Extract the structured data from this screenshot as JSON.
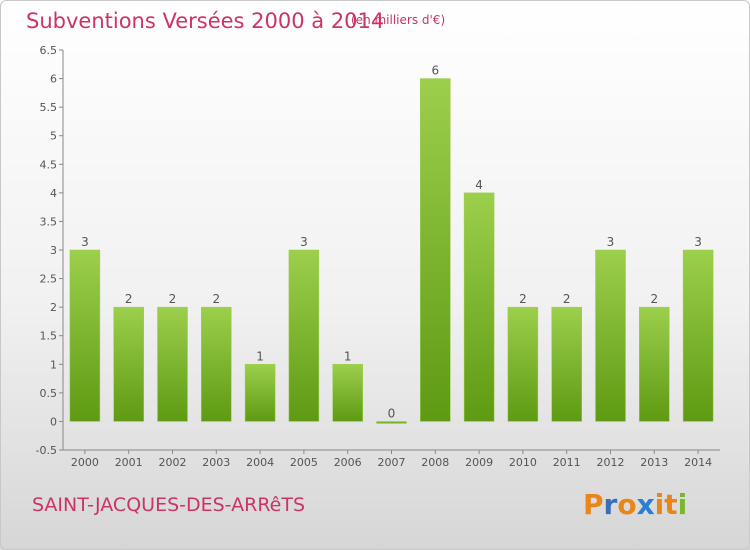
{
  "header": {
    "title": "Subventions Versées 2000 à 2014",
    "subtitle": "(en milliers d'€)"
  },
  "footer": {
    "commune": "SAINT-JACQUES-DES-ARRêTS",
    "logo": "Proxiti"
  },
  "colors": {
    "title": "#cc3366",
    "bar_top": "#9ccf4c",
    "bar_bottom": "#5e9a12",
    "axis": "#888888",
    "label": "#555555",
    "logo_letters": [
      "#e8861a",
      "#3a6fb5",
      "#e8861a",
      "#2a7fd0",
      "#e8861a",
      "#e8861a",
      "#7ab62e"
    ]
  },
  "chart_data": {
    "type": "bar",
    "categories": [
      "2000",
      "2001",
      "2002",
      "2003",
      "2004",
      "2005",
      "2006",
      "2007",
      "2008",
      "2009",
      "2010",
      "2011",
      "2012",
      "2013",
      "2014"
    ],
    "values": [
      3,
      2,
      2,
      2,
      1,
      3,
      1,
      0,
      6,
      4,
      2,
      2,
      3,
      2,
      3
    ],
    "ylim": [
      -0.5,
      6.5
    ],
    "yticks": [
      -0.5,
      0,
      0.5,
      1,
      1.5,
      2,
      2.5,
      3,
      3.5,
      4,
      4.5,
      5,
      5.5,
      6,
      6.5
    ],
    "grid": false,
    "data_labels": true
  }
}
